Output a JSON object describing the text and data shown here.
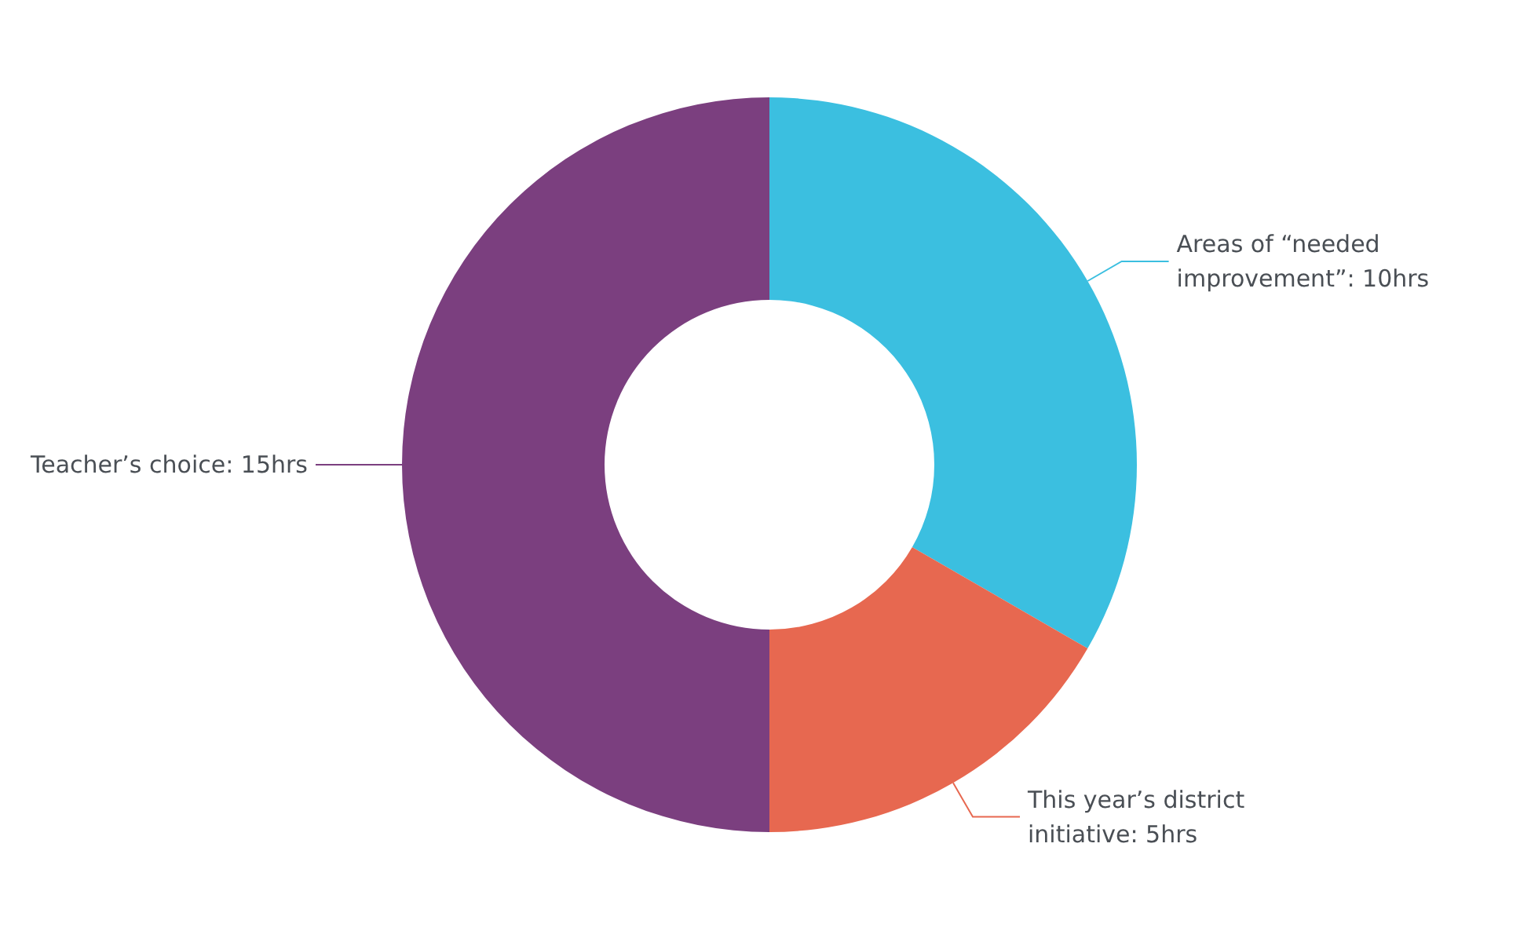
{
  "chart_data": {
    "type": "donut",
    "categories": [
      "Areas of “needed improvement”",
      "This year’s district initiative",
      "Teacher’s choice"
    ],
    "values": [
      10,
      5,
      15
    ],
    "value_labels": [
      "10hrs",
      "5hrs",
      "15hrs"
    ],
    "colors": [
      "#3bbfe0",
      "#e76850",
      "#7b3f7f"
    ],
    "legend": false
  }
}
